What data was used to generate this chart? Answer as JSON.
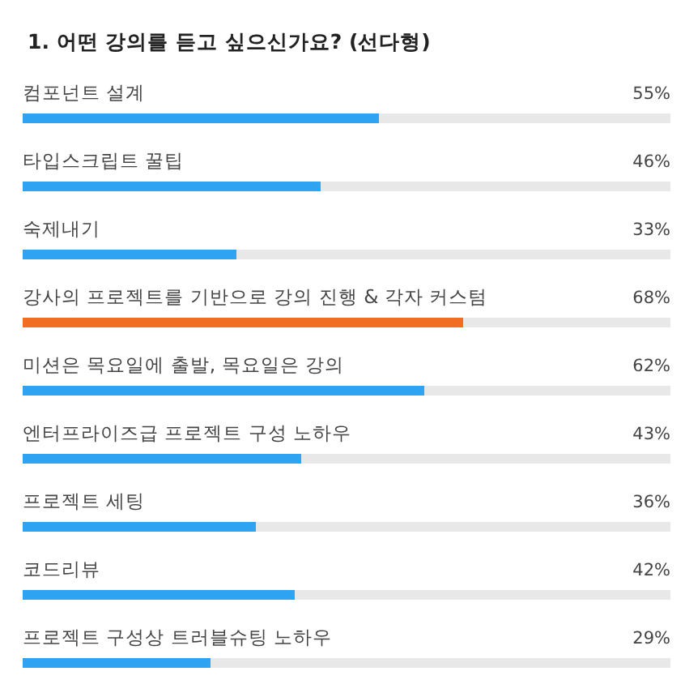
{
  "chart_data": {
    "type": "bar",
    "orientation": "horizontal",
    "title": "1. 어떤 강의를 듣고 싶으신가요? (선다형)",
    "categories": [
      "컴포넌트 설계",
      "타입스크립트 꿀팁",
      "숙제내기",
      "강사의 프로젝트를 기반으로 강의 진행 & 각자 커스텀",
      "미션은 목요일에 출발, 목요일은 강의",
      "엔터프라이즈급 프로젝트 구성 노하우",
      "프로젝트 세팅",
      "코드리뷰",
      "프로젝트 구성상 트러블슈팅 노하우"
    ],
    "values": [
      55,
      46,
      33,
      68,
      62,
      43,
      36,
      42,
      29
    ],
    "value_labels": [
      "55%",
      "46%",
      "33%",
      "68%",
      "62%",
      "43%",
      "36%",
      "42%",
      "29%"
    ],
    "colors": [
      "#2ea3f2",
      "#2ea3f2",
      "#2ea3f2",
      "#f06d22",
      "#2ea3f2",
      "#2ea3f2",
      "#2ea3f2",
      "#2ea3f2",
      "#2ea3f2"
    ],
    "xlim": [
      0,
      100
    ]
  }
}
